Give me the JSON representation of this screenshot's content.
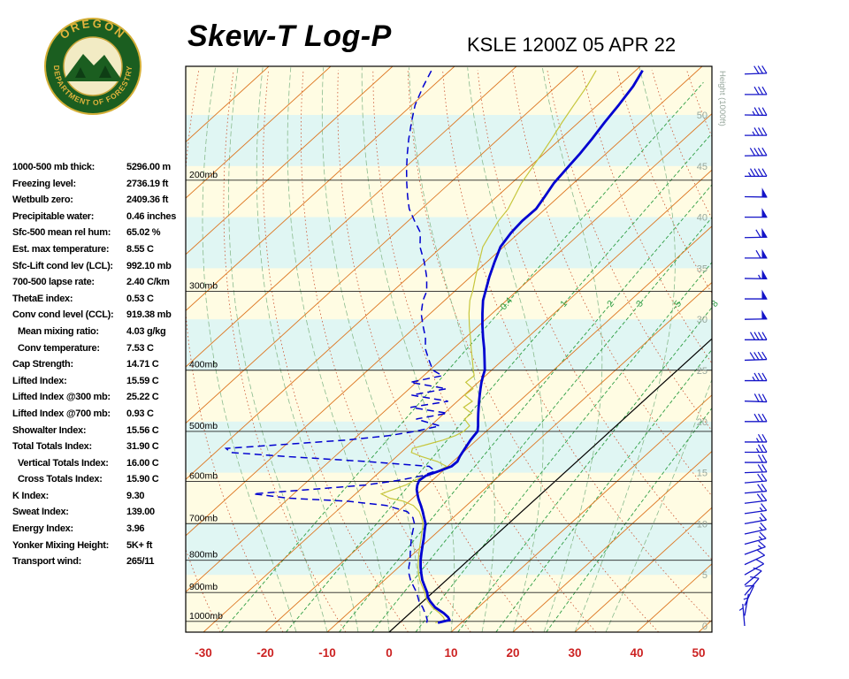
{
  "header": {
    "title": "Skew-T Log-P",
    "station_line": "KSLE 1200Z 05 APR 22"
  },
  "logo": {
    "text_top": "OREGON",
    "text_bottom": "DEPARTMENT OF FORESTRY",
    "ring_color": "#1b5e20",
    "gold_color": "#e0b33c",
    "center_color": "#f2ebc4"
  },
  "stats": [
    {
      "label": "1000-500 mb thick:",
      "value": "5296.00 m",
      "indent": false
    },
    {
      "label": "Freezing level:",
      "value": "2736.19 ft",
      "indent": false
    },
    {
      "label": "Wetbulb zero:",
      "value": "2409.36 ft",
      "indent": false
    },
    {
      "label": "Precipitable water:",
      "value": "0.46 inches",
      "indent": false
    },
    {
      "label": "Sfc-500 mean rel hum:",
      "value": "65.02 %",
      "indent": false
    },
    {
      "label": "Est. max temperature:",
      "value": "8.55 C",
      "indent": false
    },
    {
      "label": "Sfc-Lift cond lev (LCL):",
      "value": "992.10 mb",
      "indent": false
    },
    {
      "label": "700-500 lapse rate:",
      "value": "2.40 C/km",
      "indent": false
    },
    {
      "label": "ThetaE index:",
      "value": "0.53 C",
      "indent": false
    },
    {
      "label": "Conv cond level (CCL):",
      "value": "919.38 mb",
      "indent": false
    },
    {
      "label": "Mean mixing ratio:",
      "value": "4.03 g/kg",
      "indent": true
    },
    {
      "label": "Conv temperature:",
      "value": "7.53 C",
      "indent": true
    },
    {
      "label": "Cap Strength:",
      "value": "14.71 C",
      "indent": false
    },
    {
      "label": "Lifted Index:",
      "value": "15.59 C",
      "indent": false
    },
    {
      "label": "Lifted Index @300 mb:",
      "value": "25.22 C",
      "indent": false
    },
    {
      "label": "Lifted Index @700 mb:",
      "value": "0.93 C",
      "indent": false
    },
    {
      "label": "Showalter Index:",
      "value": "15.56 C",
      "indent": false
    },
    {
      "label": "Total Totals Index:",
      "value": "31.90 C",
      "indent": false
    },
    {
      "label": "Vertical Totals Index:",
      "value": "16.00 C",
      "indent": true
    },
    {
      "label": "Cross Totals Index:",
      "value": "15.90 C",
      "indent": true
    },
    {
      "label": "K Index:",
      "value": "9.30",
      "indent": false
    },
    {
      "label": "Sweat Index:",
      "value": "139.00",
      "indent": false
    },
    {
      "label": "Energy Index:",
      "value": "3.96",
      "indent": false
    },
    {
      "label": "Yonker Mixing Height:",
      "value": "5K+ ft",
      "indent": false
    },
    {
      "label": "Transport wind:",
      "value": "265/11",
      "indent": false
    }
  ],
  "chart_data": {
    "type": "skewt_log_p_sounding",
    "pressure_labels": [
      "200mb",
      "300mb",
      "400mb",
      "500mb",
      "600mb",
      "700mb",
      "800mb",
      "900mb",
      "1000mb"
    ],
    "pressure_values": [
      200,
      300,
      400,
      500,
      600,
      700,
      800,
      900,
      1000
    ],
    "temp_axis_labels": [
      -30,
      -20,
      -10,
      0,
      10,
      20,
      30,
      40,
      50
    ],
    "height_axis": {
      "title": "Height (1000ft)",
      "ticks": [
        50,
        45,
        40,
        35,
        30,
        25,
        20,
        15,
        10,
        5,
        0
      ]
    },
    "mixing_ratio_labels": [
      "0.4",
      "1",
      "2",
      "3",
      "5",
      "8"
    ],
    "mixing_ratio_lines": [
      0.4,
      1,
      2,
      3,
      5,
      8,
      12,
      20
    ],
    "sounding": {
      "pressure_mb": [
        1005,
        995,
        985,
        970,
        950,
        930,
        915,
        900,
        880,
        860,
        840,
        820,
        800,
        780,
        760,
        740,
        720,
        700,
        685,
        670,
        655,
        645,
        638,
        628,
        618,
        608,
        598,
        588,
        578,
        568,
        558,
        548,
        540,
        532,
        524,
        516,
        508,
        500,
        490,
        478,
        468,
        458,
        448,
        438,
        428,
        418,
        408,
        400,
        385,
        370,
        355,
        340,
        325,
        310,
        300,
        285,
        270,
        255,
        242,
        232,
        222,
        212,
        202,
        192,
        182,
        172,
        162,
        152,
        142,
        134
      ],
      "temperature_c": [
        6.2,
        7.6,
        6.9,
        5.4,
        3.0,
        1.2,
        0.0,
        -0.9,
        -2.4,
        -3.9,
        -5.2,
        -6.5,
        -7.7,
        -8.8,
        -9.9,
        -11.0,
        -12.2,
        -13.4,
        -14.7,
        -16.0,
        -17.4,
        -18.4,
        -19.1,
        -20.0,
        -20.9,
        -21.6,
        -22.1,
        -21.9,
        -20.6,
        -19.4,
        -19.3,
        -19.8,
        -20.1,
        -20.4,
        -20.7,
        -21.0,
        -21.2,
        -21.4,
        -22.3,
        -23.5,
        -24.5,
        -25.5,
        -26.5,
        -27.5,
        -28.5,
        -29.5,
        -30.4,
        -31.1,
        -33.0,
        -35.0,
        -37.2,
        -39.4,
        -41.6,
        -43.8,
        -45.0,
        -46.9,
        -48.7,
        -50.5,
        -51.3,
        -51.6,
        -51.5,
        -52.3,
        -53.2,
        -53.7,
        -54.2,
        -54.9,
        -55.8,
        -56.6,
        -57.6,
        -58.9
      ],
      "dewpoint_c": [
        4.4,
        4.0,
        3.4,
        2.4,
        1.0,
        -0.6,
        -1.6,
        -2.6,
        -4.2,
        -5.8,
        -7.2,
        -8.4,
        -9.4,
        -10.6,
        -11.8,
        -13.0,
        -14.1,
        -15.2,
        -16.5,
        -18.5,
        -23.0,
        -30.0,
        -40.0,
        -46.5,
        -38.0,
        -30.0,
        -25.5,
        -22.5,
        -21.2,
        -23.0,
        -34.0,
        -48.0,
        -57.5,
        -59.0,
        -50.0,
        -41.0,
        -35.0,
        -31.5,
        -28.5,
        -33.5,
        -29.5,
        -36.5,
        -31.5,
        -38.5,
        -34.0,
        -41.0,
        -37.0,
        -39.5,
        -42.0,
        -44.5,
        -46.5,
        -49.0,
        -51.5,
        -53.5,
        -54.5,
        -57.0,
        -60.0,
        -63.5,
        -66.0,
        -69.0,
        -72.0,
        -74.5,
        -77.0,
        -79.5,
        -82.0,
        -84.5,
        -87.0,
        -89.5,
        -91.5,
        -93.0
      ]
    },
    "winds": [
      {
        "height_kft": 0,
        "dir_deg": 175,
        "speed_kt": 4
      },
      {
        "height_kft": 1,
        "dir_deg": 190,
        "speed_kt": 6
      },
      {
        "height_kft": 2,
        "dir_deg": 205,
        "speed_kt": 8
      },
      {
        "height_kft": 3,
        "dir_deg": 220,
        "speed_kt": 9
      },
      {
        "height_kft": 4,
        "dir_deg": 230,
        "speed_kt": 10
      },
      {
        "height_kft": 5,
        "dir_deg": 240,
        "speed_kt": 11
      },
      {
        "height_kft": 6,
        "dir_deg": 245,
        "speed_kt": 12
      },
      {
        "height_kft": 7,
        "dir_deg": 250,
        "speed_kt": 13
      },
      {
        "height_kft": 8,
        "dir_deg": 255,
        "speed_kt": 14
      },
      {
        "height_kft": 9,
        "dir_deg": 258,
        "speed_kt": 15
      },
      {
        "height_kft": 10,
        "dir_deg": 260,
        "speed_kt": 15
      },
      {
        "height_kft": 11,
        "dir_deg": 262,
        "speed_kt": 16
      },
      {
        "height_kft": 12,
        "dir_deg": 263,
        "speed_kt": 18
      },
      {
        "height_kft": 13,
        "dir_deg": 265,
        "speed_kt": 18
      },
      {
        "height_kft": 14,
        "dir_deg": 265,
        "speed_kt": 20
      },
      {
        "height_kft": 15,
        "dir_deg": 268,
        "speed_kt": 20
      },
      {
        "height_kft": 16,
        "dir_deg": 270,
        "speed_kt": 22
      },
      {
        "height_kft": 17,
        "dir_deg": 270,
        "speed_kt": 24
      },
      {
        "height_kft": 18,
        "dir_deg": 270,
        "speed_kt": 25
      },
      {
        "height_kft": 20,
        "dir_deg": 270,
        "speed_kt": 28
      },
      {
        "height_kft": 22,
        "dir_deg": 272,
        "speed_kt": 30
      },
      {
        "height_kft": 24,
        "dir_deg": 270,
        "speed_kt": 34
      },
      {
        "height_kft": 26,
        "dir_deg": 268,
        "speed_kt": 38
      },
      {
        "height_kft": 28,
        "dir_deg": 270,
        "speed_kt": 42
      },
      {
        "height_kft": 30,
        "dir_deg": 269,
        "speed_kt": 48
      },
      {
        "height_kft": 32,
        "dir_deg": 270,
        "speed_kt": 52
      },
      {
        "height_kft": 34,
        "dir_deg": 271,
        "speed_kt": 56
      },
      {
        "height_kft": 36,
        "dir_deg": 270,
        "speed_kt": 60
      },
      {
        "height_kft": 38,
        "dir_deg": 269,
        "speed_kt": 58
      },
      {
        "height_kft": 40,
        "dir_deg": 270,
        "speed_kt": 52
      },
      {
        "height_kft": 42,
        "dir_deg": 271,
        "speed_kt": 48
      },
      {
        "height_kft": 44,
        "dir_deg": 270,
        "speed_kt": 44
      },
      {
        "height_kft": 46,
        "dir_deg": 269,
        "speed_kt": 40
      },
      {
        "height_kft": 48,
        "dir_deg": 270,
        "speed_kt": 36
      },
      {
        "height_kft": 50,
        "dir_deg": 271,
        "speed_kt": 33
      },
      {
        "height_kft": 52,
        "dir_deg": 270,
        "speed_kt": 30
      },
      {
        "height_kft": 54,
        "dir_deg": 268,
        "speed_kt": 28
      }
    ],
    "colors": {
      "band_cream": "#fffce3",
      "band_cyan": "#e0f6f3",
      "isotherm": "#dd7722",
      "zero_isotherm": "#000000",
      "dry_adiabat": "#cc5533",
      "moist_adiabat": "#8abb8e",
      "mixing_ratio": "#2f9e44",
      "temperature": "#0000d0",
      "dewpoint": "#0000d0",
      "wetbulb": "#c6c63c",
      "wind": "#1414c8",
      "axis_red": "#cc2222",
      "height_gray": "#97a79c"
    }
  }
}
